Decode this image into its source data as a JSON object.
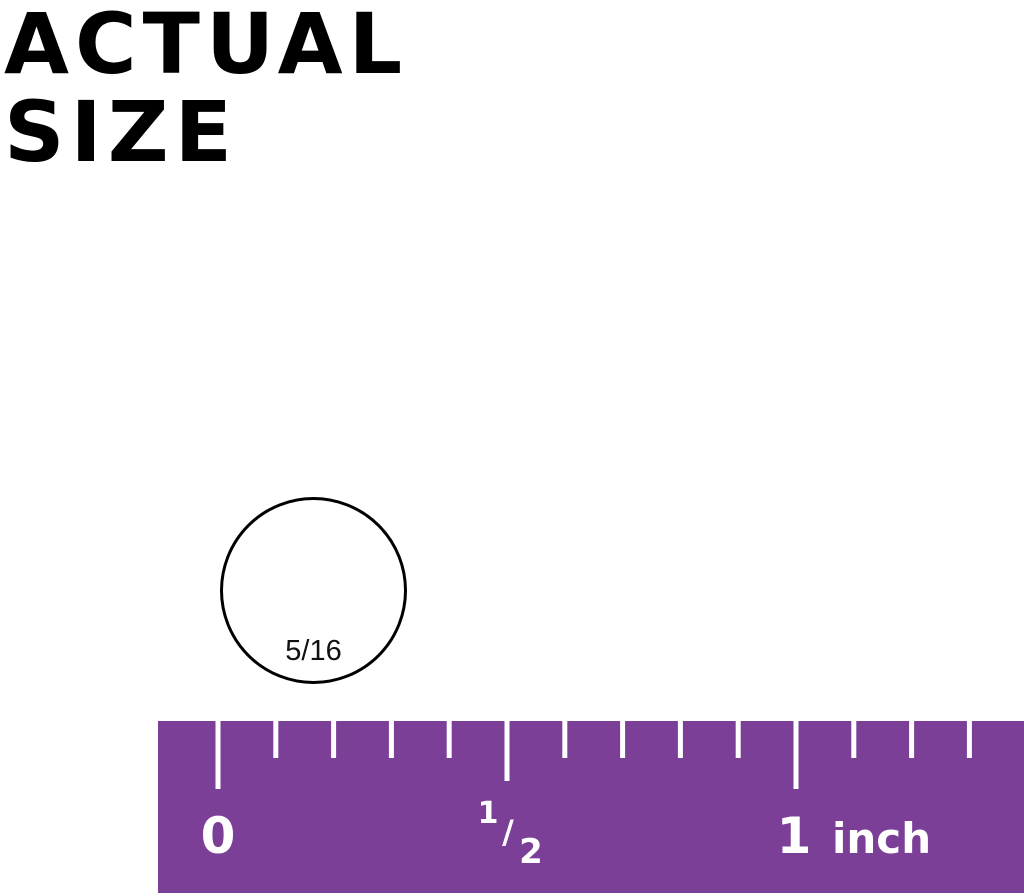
{
  "title": {
    "line1": "ACTUAL",
    "line2": "SIZE"
  },
  "circle": {
    "label": "5/16"
  },
  "ruler": {
    "color": "#7b3f98",
    "labels": {
      "zero": "0",
      "half_num": "1",
      "half_den": "2",
      "one": "1",
      "unit": "inch"
    },
    "ticks_per_inch": 10
  }
}
